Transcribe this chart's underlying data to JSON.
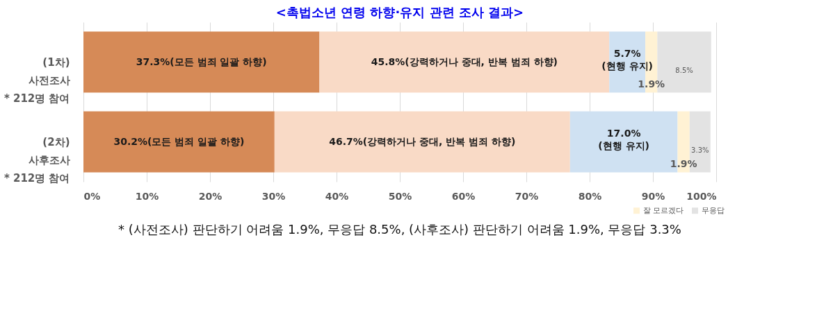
{
  "chart_data": {
    "type": "bar",
    "orientation": "horizontal",
    "stacked": true,
    "title": "<촉법소년 연령 하향·유지 관련 조사 결과>",
    "categories": [
      "(1차)\n사전조사\n* 212명 참여",
      "(2차)\n사후조사\n* 212명 참여"
    ],
    "series": [
      {
        "color": "#d68a57",
        "values": [
          37.3,
          30.2
        ],
        "value_labels": [
          "37.3%(모든 범죄 일괄 하향)",
          "30.2%(모든 범죄 일괄 하향)"
        ]
      },
      {
        "color": "#f9dac6",
        "values": [
          45.8,
          46.7
        ],
        "value_labels": [
          "45.8%(강력하거나 중대, 반복 범죄 하향)",
          "46.7%(강력하거나 중대, 반복 범죄 하향)"
        ]
      },
      {
        "color": "#cfe1f2",
        "values": [
          5.7,
          17.0
        ],
        "value_labels": [
          "5.7%\n(현행 유지)",
          "17.0%\n(현행 유지)"
        ]
      },
      {
        "name": "잘 모르겠다",
        "color": "#fff2d4",
        "values": [
          1.9,
          1.9
        ],
        "value_labels": [
          "1.9%",
          "1.9%"
        ]
      },
      {
        "name": "무응답",
        "color": "#e3e3e3",
        "values": [
          8.5,
          3.3
        ],
        "value_labels": [
          "8.5%",
          "3.3%"
        ]
      }
    ],
    "xlim": [
      0,
      100
    ],
    "xticks": [
      {
        "value": 0,
        "label": "0%"
      },
      {
        "value": 10,
        "label": "10%"
      },
      {
        "value": 20,
        "label": "20%"
      },
      {
        "value": 30,
        "label": "30%"
      },
      {
        "value": 40,
        "label": "40%"
      },
      {
        "value": 50,
        "label": "50%"
      },
      {
        "value": 60,
        "label": "60%"
      },
      {
        "value": 70,
        "label": "70%"
      },
      {
        "value": 80,
        "label": "80%"
      },
      {
        "value": 90,
        "label": "90%"
      },
      {
        "value": 100,
        "label": "100%"
      }
    ],
    "grid": "x",
    "legend": "bottom right",
    "annotations": [
      "* (사전조사) 판단하기 어려움 1.9%, 무응답 8.5%, (사후조사) 판단하기 어려움 1.9%, 무응답 3.3%"
    ]
  }
}
